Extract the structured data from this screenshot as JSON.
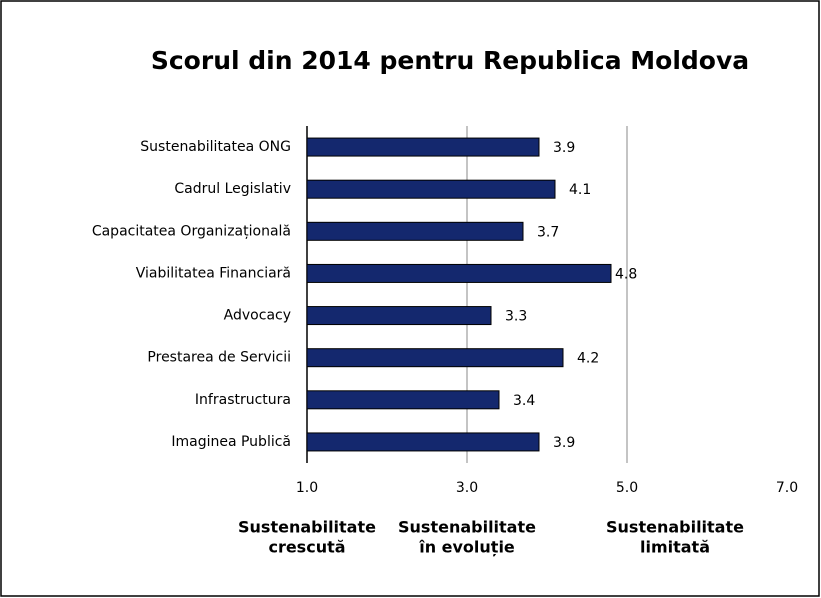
{
  "chart_data": {
    "type": "bar",
    "orientation": "horizontal",
    "title": "Scorul din 2014 pentru Republica Moldova",
    "categories": [
      "Sustenabilitatea ONG",
      "Cadrul Legislativ",
      "Capacitatea Organizațională",
      "Viabilitatea Financiară",
      "Advocacy",
      "Prestarea de Servicii",
      "Infrastructura",
      "Imaginea Publică"
    ],
    "values": [
      3.9,
      4.1,
      3.7,
      4.8,
      3.3,
      4.2,
      3.4,
      3.9
    ],
    "color": "#14286e",
    "xlim": [
      1,
      7
    ],
    "xticks": [
      {
        "value": 1,
        "label": "1.0"
      },
      {
        "value": 3,
        "label": "3.0"
      },
      {
        "value": 5,
        "label": "5.0"
      },
      {
        "value": 7,
        "label": "7.0"
      }
    ],
    "grid": true,
    "annotations": [
      {
        "lines": [
          "Sustenabilitate",
          "crescută"
        ],
        "x": 1
      },
      {
        "lines": [
          "Sustenabilitate",
          "în evoluție"
        ],
        "x": 3
      },
      {
        "lines": [
          "Sustenabilitate",
          "limitată"
        ],
        "x": 5.6
      }
    ]
  }
}
